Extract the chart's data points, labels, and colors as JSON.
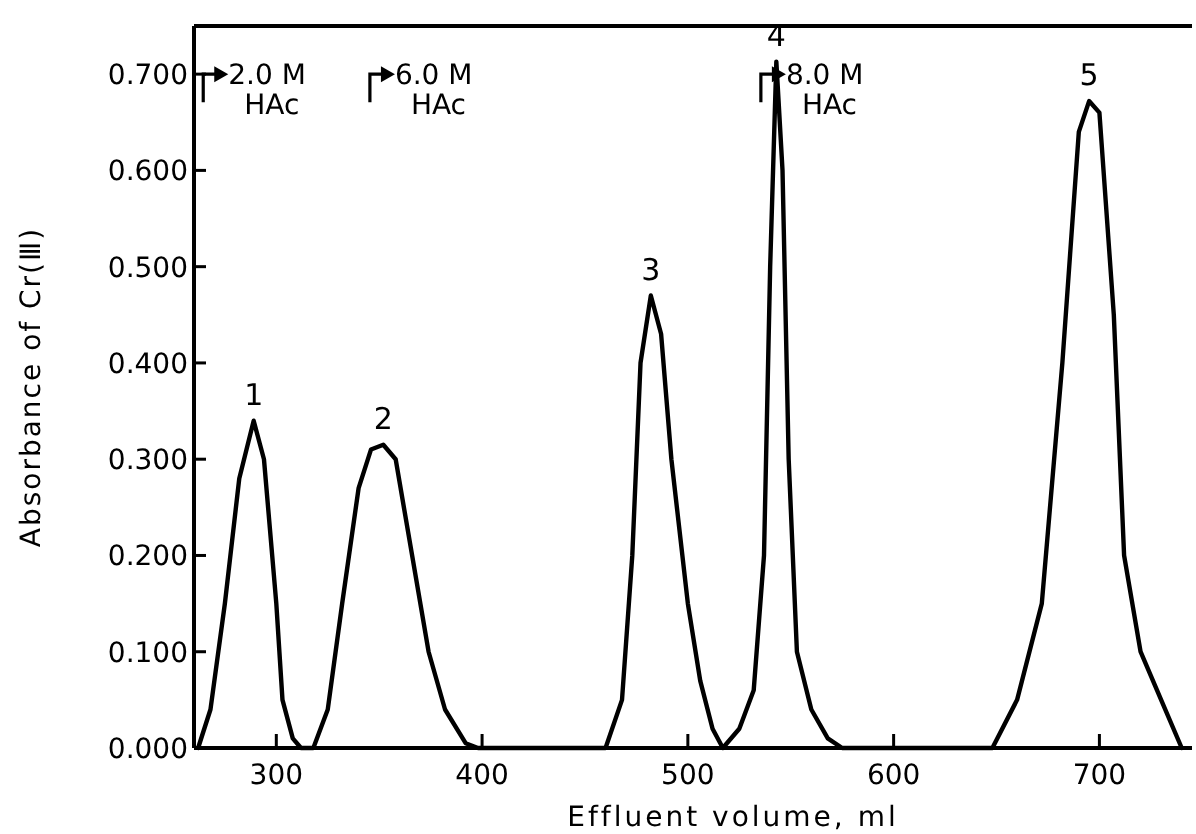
{
  "chart_data": {
    "type": "line",
    "xlabel": "Effluent volume, ml",
    "ylabel": "Absorbance of Cr(Ⅲ)",
    "xlim": [
      260,
      745
    ],
    "ylim": [
      0,
      0.75
    ],
    "xticks": [
      300,
      400,
      500,
      600,
      700
    ],
    "yticks": [
      {
        "value": 0,
        "label": "0.000"
      },
      {
        "value": 0.1,
        "label": "0.100"
      },
      {
        "value": 0.2,
        "label": "0.200"
      },
      {
        "value": 0.3,
        "label": "0.300"
      },
      {
        "value": 0.4,
        "label": "0.400"
      },
      {
        "value": 0.5,
        "label": "0.500"
      },
      {
        "value": 0.6,
        "label": "0.600"
      },
      {
        "value": 0.7,
        "label": "0.700"
      }
    ],
    "grid": false,
    "marker": "none",
    "line_style": "solid",
    "ref_lines": [
      {
        "axis": "x",
        "value": 264,
        "label": "2.0 M\nHAc"
      },
      {
        "axis": "x",
        "value": 345,
        "label": "6.0 M\nHAc"
      },
      {
        "axis": "x",
        "value": 535,
        "label": "8.0 M\nHAc"
      }
    ],
    "series": [
      {
        "color": "#000000",
        "x": [
          262,
          268,
          275,
          282,
          289,
          294,
          300,
          303,
          308,
          312,
          318,
          325,
          332,
          340,
          346,
          352,
          358,
          366,
          374,
          382,
          392,
          398,
          460,
          468,
          473,
          477,
          482,
          487,
          492,
          500,
          506,
          512,
          517,
          525,
          532,
          537,
          540,
          543,
          546,
          549,
          553,
          560,
          568,
          575,
          648,
          660,
          672,
          682,
          690,
          695,
          700,
          707,
          712,
          720,
          730,
          740
        ],
        "values": [
          0,
          0.04,
          0.15,
          0.28,
          0.34,
          0.3,
          0.15,
          0.05,
          0.01,
          0,
          0,
          0.04,
          0.15,
          0.27,
          0.31,
          0.315,
          0.3,
          0.2,
          0.1,
          0.04,
          0.005,
          0,
          0,
          0.05,
          0.2,
          0.4,
          0.47,
          0.43,
          0.3,
          0.15,
          0.07,
          0.02,
          0,
          0.02,
          0.06,
          0.2,
          0.5,
          0.713,
          0.6,
          0.3,
          0.1,
          0.04,
          0.01,
          0,
          0,
          0.05,
          0.15,
          0.4,
          0.64,
          0.672,
          0.66,
          0.45,
          0.2,
          0.1,
          0.05,
          0
        ]
      }
    ],
    "annotations": [
      {
        "text": "1",
        "x": 289,
        "y": 0.34
      },
      {
        "text": "2",
        "x": 352,
        "y": 0.315
      },
      {
        "text": "3",
        "x": 482,
        "y": 0.47
      },
      {
        "text": "4",
        "x": 543,
        "y": 0.713
      },
      {
        "text": "5",
        "x": 695,
        "y": 0.672
      }
    ]
  }
}
